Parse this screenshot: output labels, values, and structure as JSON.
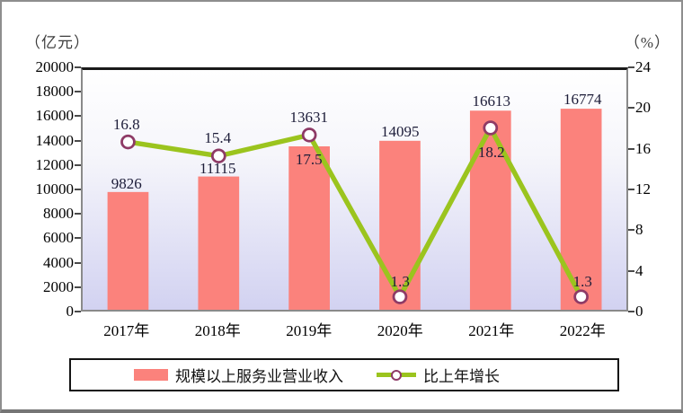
{
  "chart_data": {
    "type": "bar",
    "subtype": "combo-bar-line",
    "categories": [
      "2017年",
      "2018年",
      "2019年",
      "2020年",
      "2021年",
      "2022年"
    ],
    "series": [
      {
        "name": "规模以上服务业营业收入",
        "type": "bar",
        "axis": "left",
        "values": [
          9826,
          11115,
          13631,
          14095,
          16613,
          16774
        ],
        "color": "#FB827C",
        "label_placement": [
          "above-bar",
          "above-bar",
          "above-marker",
          "above-bar",
          "above-bar",
          "above-bar"
        ]
      },
      {
        "name": "比上年增长",
        "type": "line",
        "axis": "right",
        "values": [
          16.8,
          15.4,
          17.5,
          1.3,
          18.2,
          1.3
        ],
        "color": "#9BC41E",
        "marker_fill": "#FFFFFF",
        "marker_stroke": "#8E3A66",
        "label_placement": [
          "above",
          "above",
          "below",
          "above",
          "below",
          "above"
        ]
      }
    ],
    "left_axis": {
      "unit": "（亿元）",
      "min": 0,
      "max": 20000,
      "step": 2000
    },
    "right_axis": {
      "unit": "（%）",
      "min": 0,
      "max": 24,
      "step": 4
    },
    "grid": false,
    "legend_position": "bottom",
    "plot_bg_gradient": [
      "#FFFFFF",
      "#D2D2F1"
    ]
  }
}
